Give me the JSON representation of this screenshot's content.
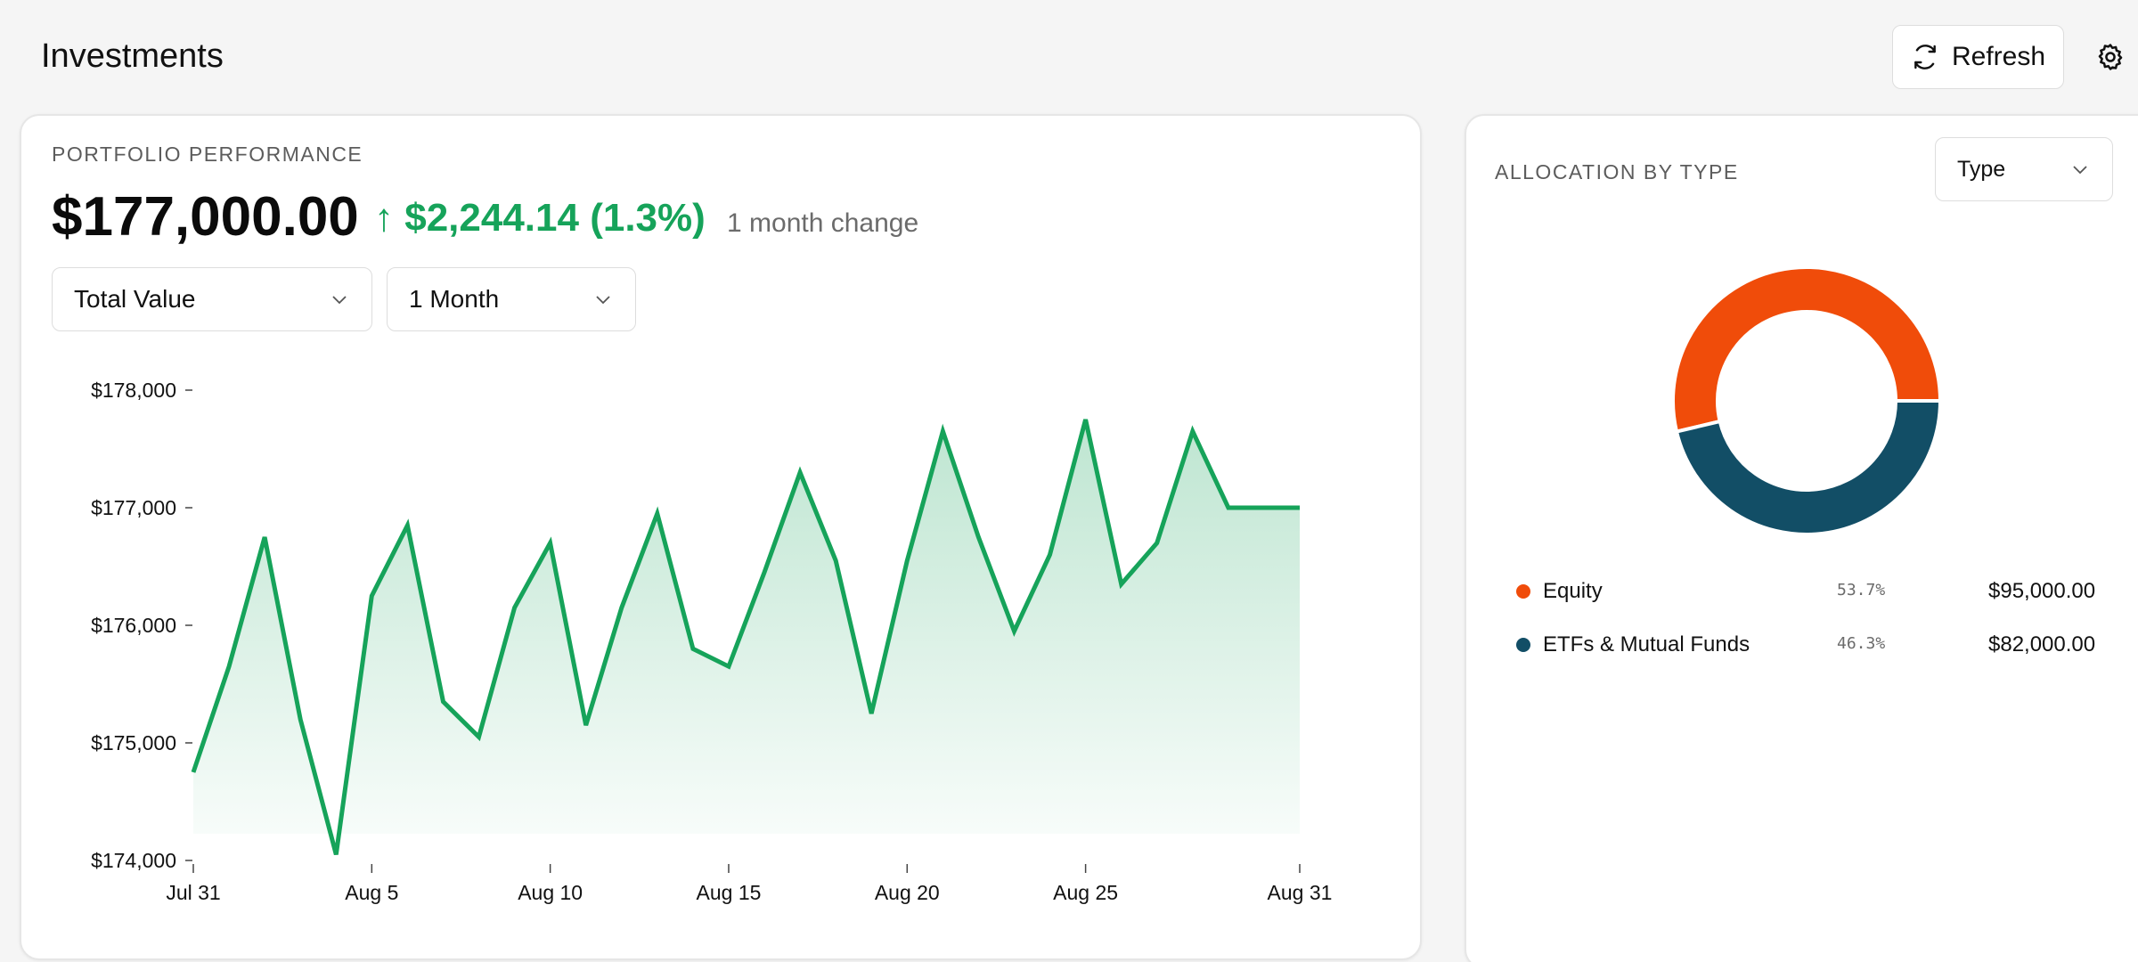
{
  "header": {
    "title": "Investments",
    "refresh_label": "Refresh"
  },
  "performance": {
    "section_label": "PORTFOLIO PERFORMANCE",
    "value": "$177,000.00",
    "change": "↑ $2,244.14 (1.3%)",
    "change_note": "1 month change",
    "metric_select": "Total Value",
    "period_select": "1 Month"
  },
  "allocation": {
    "section_label": "ALLOCATION BY TYPE",
    "group_select": "Type",
    "items": [
      {
        "name": "Equity",
        "pct": "53.7%",
        "value": "$95,000.00",
        "color": "#f04c0a"
      },
      {
        "name": "ETFs & Mutual Funds",
        "pct": "46.3%",
        "value": "$82,000.00",
        "color": "#124e66"
      }
    ]
  },
  "chart_data": {
    "type": "area",
    "title": "",
    "xlabel": "",
    "ylabel": "",
    "ylim": [
      174000,
      178000
    ],
    "y_ticks": [
      "$178,000",
      "$177,000",
      "$176,000",
      "$175,000",
      "$174,000"
    ],
    "x_ticks": [
      "Jul 31",
      "Aug 5",
      "Aug 10",
      "Aug 15",
      "Aug 20",
      "Aug 25",
      "Aug 31"
    ],
    "x": [
      "Jul 31",
      "Aug 1",
      "Aug 2",
      "Aug 3",
      "Aug 4",
      "Aug 5",
      "Aug 6",
      "Aug 7",
      "Aug 8",
      "Aug 9",
      "Aug 10",
      "Aug 11",
      "Aug 12",
      "Aug 13",
      "Aug 14",
      "Aug 15",
      "Aug 16",
      "Aug 17",
      "Aug 18",
      "Aug 19",
      "Aug 20",
      "Aug 21",
      "Aug 22",
      "Aug 23",
      "Aug 24",
      "Aug 25",
      "Aug 26",
      "Aug 27",
      "Aug 28",
      "Aug 29",
      "Aug 30",
      "Aug 31"
    ],
    "values": [
      174750,
      175650,
      176750,
      175200,
      174050,
      176250,
      176850,
      175350,
      175050,
      176150,
      176700,
      175150,
      176150,
      176950,
      175800,
      175650,
      176450,
      177300,
      176550,
      175250,
      176550,
      177650,
      176750,
      175950,
      176600,
      177750,
      176350,
      176700,
      177650,
      177000,
      177000,
      177000
    ],
    "colors": {
      "line": "#16a35a",
      "fill": "#16a35a"
    },
    "grid": false
  }
}
